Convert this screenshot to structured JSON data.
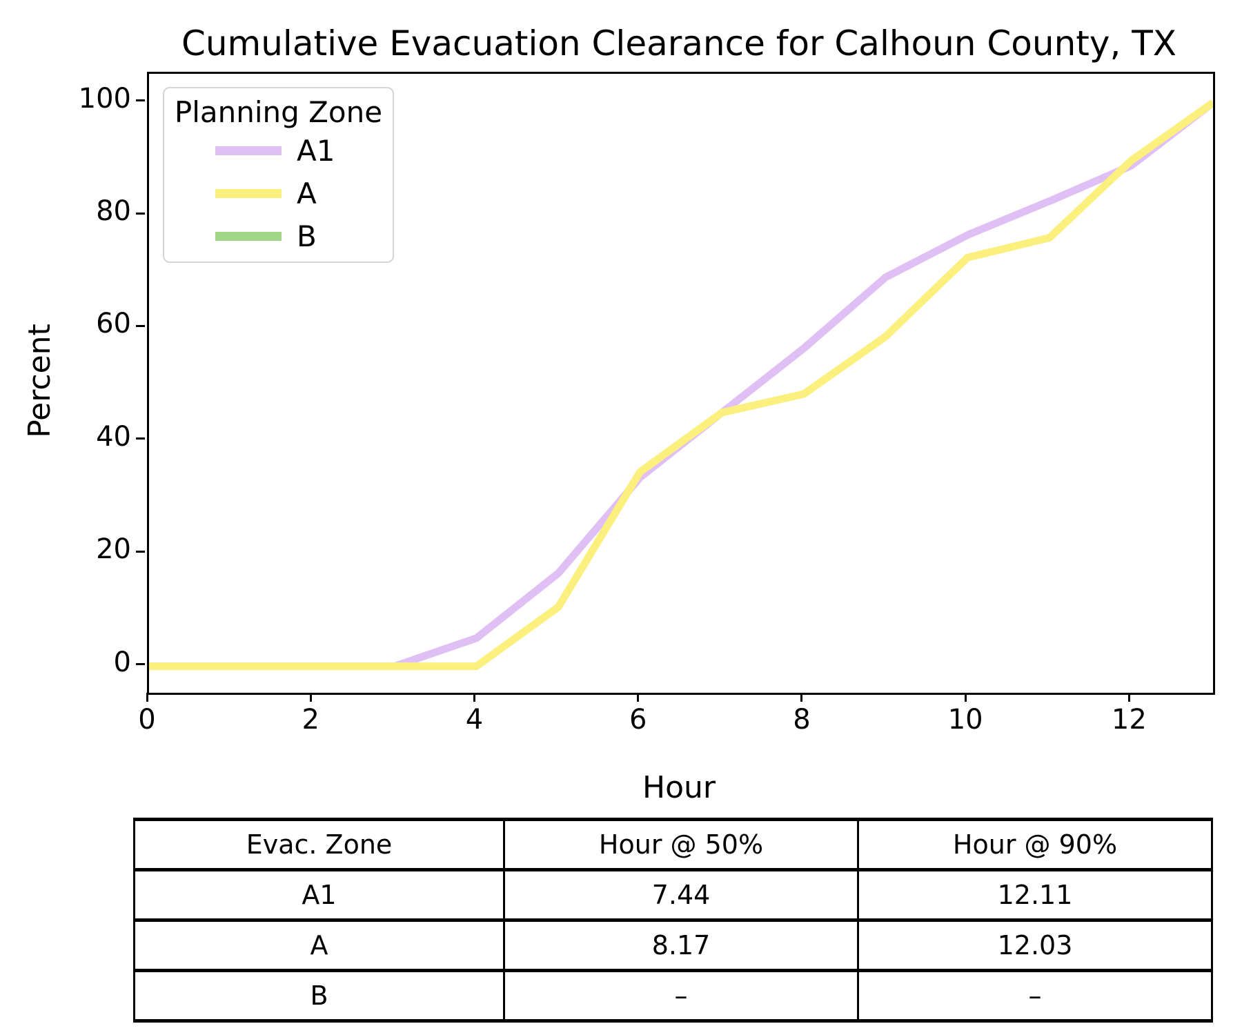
{
  "chart_data": {
    "type": "line",
    "title": "Cumulative Evacuation Clearance for Calhoun County, TX",
    "xlabel": "Hour",
    "ylabel": "Percent",
    "xlim": [
      0,
      13
    ],
    "ylim": [
      -4.7,
      105.1
    ],
    "xticks": [
      0,
      2,
      4,
      6,
      8,
      10,
      12
    ],
    "yticks": [
      0,
      20,
      40,
      60,
      80,
      100
    ],
    "grid": false,
    "legend": {
      "title": "Planning Zone",
      "position": "upper left"
    },
    "x": [
      0,
      1,
      2,
      3,
      4,
      5,
      6,
      7,
      8,
      9,
      10,
      11,
      12,
      13
    ],
    "series": [
      {
        "name": "A1",
        "color": "#e0bff5",
        "values": [
          0,
          0,
          0,
          0,
          5,
          16.5,
          33.5,
          45,
          56.4,
          69,
          76.5,
          82.5,
          88.8,
          100
        ]
      },
      {
        "name": "A",
        "color": "#fbf07e",
        "values": [
          0,
          0,
          0,
          0,
          0,
          10.5,
          34.5,
          45,
          48.3,
          58.5,
          72.5,
          76,
          89.7,
          100
        ]
      },
      {
        "name": "B",
        "color": "#a2d788",
        "values": []
      }
    ]
  },
  "table": {
    "headers": [
      "Evac. Zone",
      "Hour @ 50%",
      "Hour @ 90%"
    ],
    "rows": [
      [
        "A1",
        "7.44",
        "12.11"
      ],
      [
        "A",
        "8.17",
        "12.03"
      ],
      [
        "B",
        "–",
        "–"
      ]
    ]
  }
}
